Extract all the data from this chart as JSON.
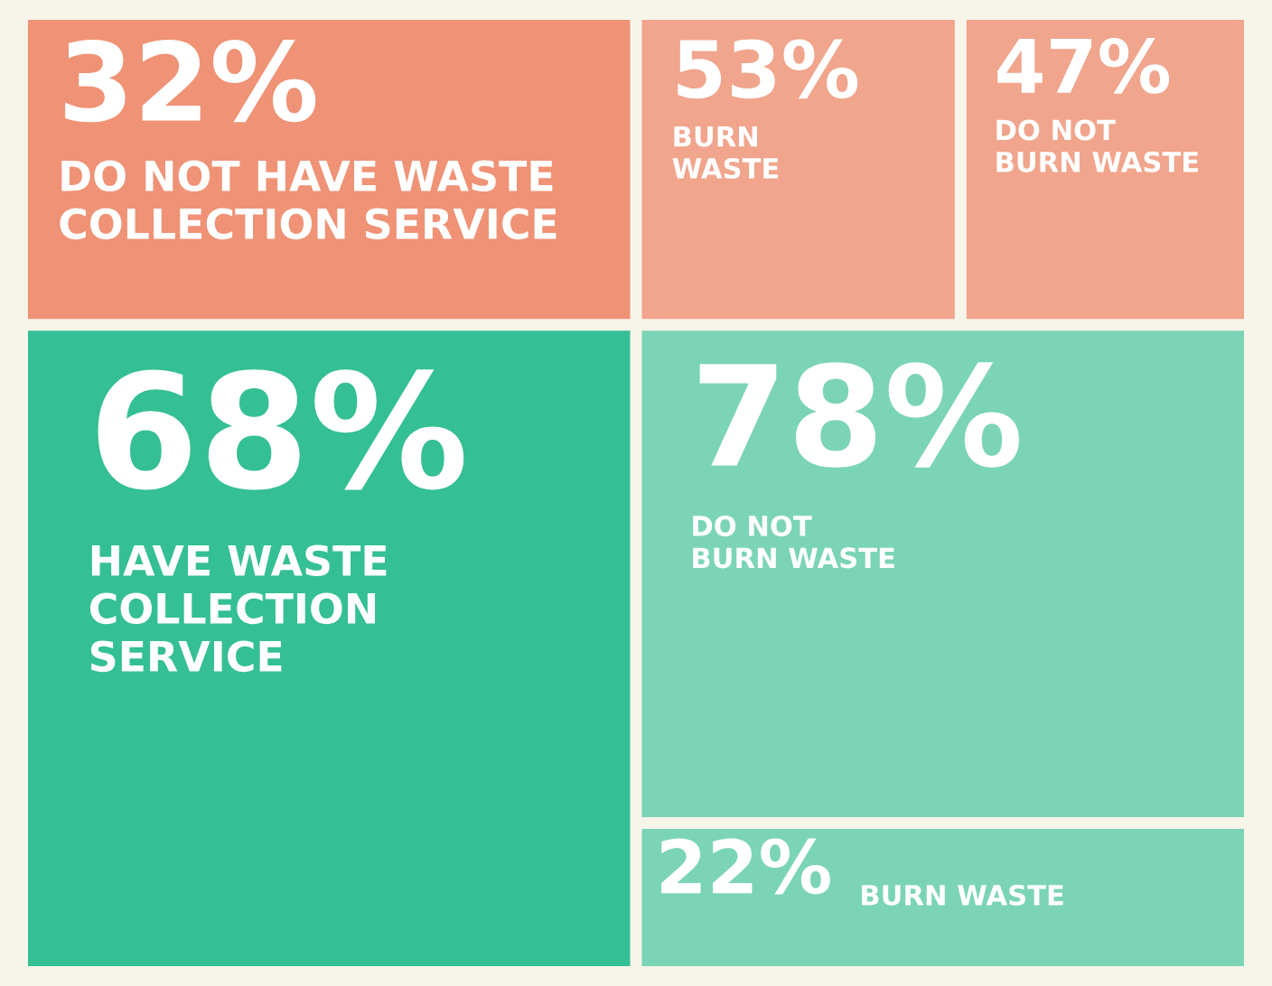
{
  "chart_data": {
    "type": "other",
    "categories": [
      "DO NOT HAVE WASTE\nCOLLECTION SERVICE",
      "HAVE WASTE\nCOLLECTION\nSERVICE",
      "BURN\nWASTE",
      "DO NOT\nBURN WASTE",
      "DO NOT\nBURN WASTE",
      "BURN WASTE"
    ],
    "values": [
      32,
      68,
      53,
      47,
      78,
      22
    ],
    "value_labels": [
      "32%",
      "68%",
      "53%",
      "47%",
      "78%",
      "22%"
    ],
    "colors": [
      "#ef9275",
      "#34bf94",
      "#f0a58c",
      "#f0a58c",
      "#7bd4b6",
      "#7bd4b6"
    ]
  }
}
